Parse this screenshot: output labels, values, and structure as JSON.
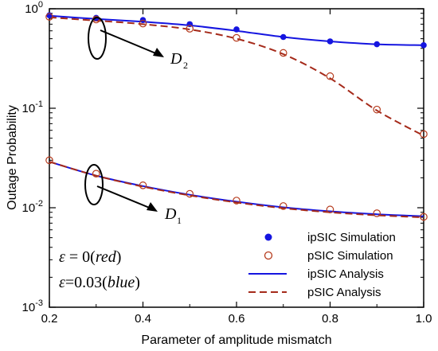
{
  "chart_data": {
    "type": "line",
    "xlabel": "Parameter of amplitude mismatch",
    "ylabel": "Outage Probability",
    "xlim": [
      0.2,
      1.0
    ],
    "ylim": [
      0.001,
      1
    ],
    "yscale": "log",
    "grid": false,
    "x_ticks": [
      "0.2",
      "0.4",
      "0.6",
      "0.8",
      "1.0"
    ],
    "y_ticks": [
      {
        "base": "10",
        "exp": "-3",
        "value": 0.001
      },
      {
        "base": "10",
        "exp": "-2",
        "value": 0.01
      },
      {
        "base": "10",
        "exp": "-1",
        "value": 0.1
      },
      {
        "base": "10",
        "exp": "0",
        "value": 1
      }
    ],
    "legend_position": "bottom-right",
    "legend": [
      {
        "label": "ipSIC Simulation",
        "style": "filled-circle",
        "color": "#1515e0"
      },
      {
        "label": "pSIC Simulation",
        "style": "open-circle",
        "color": "#b53a1c"
      },
      {
        "label": "ipSIC Analysis",
        "style": "solid-line",
        "color": "#1515e0"
      },
      {
        "label": "pSIC Analysis",
        "style": "dashed-line",
        "color": "#a52a1a"
      }
    ],
    "series": [
      {
        "group": "D2",
        "kind": "ipSIC-analysis",
        "color": "#1515e0",
        "style": "solid",
        "x": [
          0.2,
          0.3,
          0.4,
          0.5,
          0.6,
          0.7,
          0.8,
          0.9,
          1.0
        ],
        "y": [
          0.85,
          0.79,
          0.74,
          0.68,
          0.6,
          0.52,
          0.47,
          0.44,
          0.43
        ]
      },
      {
        "group": "D2",
        "kind": "ipSIC-simulation",
        "color": "#1515e0",
        "style": "filled-circle",
        "x": [
          0.2,
          0.3,
          0.4,
          0.5,
          0.6,
          0.7,
          0.8,
          0.9,
          1.0
        ],
        "y": [
          0.86,
          0.81,
          0.77,
          0.7,
          0.62,
          0.52,
          0.47,
          0.44,
          0.43
        ]
      },
      {
        "group": "D2",
        "kind": "pSIC-analysis",
        "color": "#a52a1a",
        "style": "dashed",
        "x": [
          0.2,
          0.3,
          0.4,
          0.5,
          0.6,
          0.7,
          0.8,
          0.9,
          1.0
        ],
        "y": [
          0.82,
          0.76,
          0.7,
          0.62,
          0.5,
          0.35,
          0.2,
          0.095,
          0.053
        ]
      },
      {
        "group": "D2",
        "kind": "pSIC-simulation",
        "color": "#b53a1c",
        "style": "open-circle",
        "x": [
          0.2,
          0.3,
          0.4,
          0.5,
          0.6,
          0.7,
          0.8,
          0.9,
          1.0
        ],
        "y": [
          0.83,
          0.78,
          0.71,
          0.63,
          0.51,
          0.36,
          0.21,
          0.097,
          0.055
        ]
      },
      {
        "group": "D1",
        "kind": "ipSIC-analysis",
        "color": "#1515e0",
        "style": "solid",
        "x": [
          0.2,
          0.3,
          0.4,
          0.5,
          0.6,
          0.7,
          0.8,
          0.9,
          1.0
        ],
        "y": [
          0.029,
          0.021,
          0.0165,
          0.0135,
          0.0115,
          0.0101,
          0.0092,
          0.0086,
          0.0082
        ]
      },
      {
        "group": "D1",
        "kind": "pSIC-analysis",
        "color": "#a52a1a",
        "style": "dashed",
        "x": [
          0.2,
          0.3,
          0.4,
          0.5,
          0.6,
          0.7,
          0.8,
          0.9,
          1.0
        ],
        "y": [
          0.029,
          0.021,
          0.0163,
          0.0133,
          0.0113,
          0.0099,
          0.009,
          0.0084,
          0.008
        ]
      },
      {
        "group": "D1",
        "kind": "pSIC-simulation",
        "color": "#b53a1c",
        "style": "open-circle",
        "x": [
          0.2,
          0.3,
          0.4,
          0.5,
          0.6,
          0.7,
          0.8,
          0.9,
          1.0
        ],
        "y": [
          0.03,
          0.022,
          0.0168,
          0.0138,
          0.0118,
          0.0104,
          0.0096,
          0.0088,
          0.0081
        ]
      }
    ],
    "annotations": {
      "d2_label": "D",
      "d2_sub": "2",
      "d1_label": "D",
      "d1_sub": "1",
      "eps_red": {
        "lhs": "ε",
        "eq": " = 0",
        "open": "(",
        "word": "red",
        "close": ")"
      },
      "eps_blue": {
        "lhs": "ε",
        "eq": "=0.03",
        "open": "(",
        "word": "blue",
        "close": ")"
      }
    }
  }
}
